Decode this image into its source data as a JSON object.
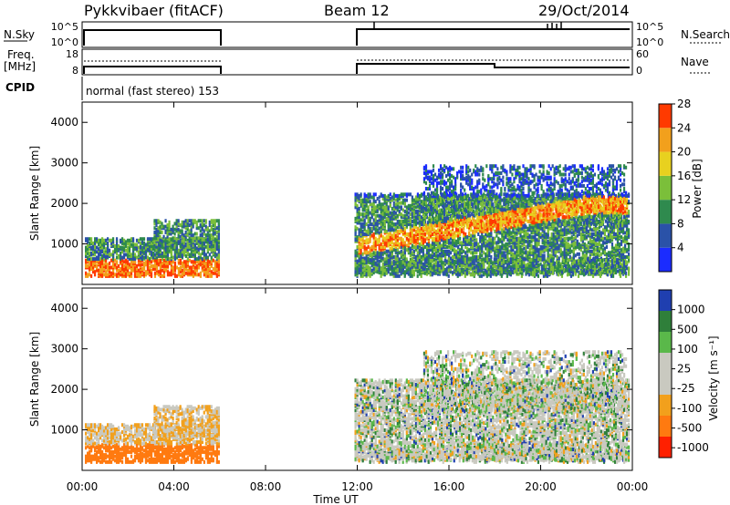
{
  "header": {
    "station": "Pykkvibaer (fitACF)",
    "beam": "Beam 12",
    "date": "29/Oct/2014"
  },
  "noise_panel": {
    "left_label": "N.Sky",
    "right_label": "N.Search",
    "left_ticks": [
      "10^5",
      "10^0"
    ],
    "right_ticks": [
      "10^5",
      "10^0"
    ]
  },
  "freq_panel": {
    "left_label_1": "Freq.",
    "left_label_2": "[MHz]",
    "right_label": "Nave",
    "left_ticks": [
      "18",
      "8"
    ],
    "right_ticks": [
      "60",
      "0"
    ]
  },
  "cpid": {
    "label": "CPID",
    "program": "normal (fast stereo) 153"
  },
  "chart_data": [
    {
      "type": "heatmap",
      "panel": "power",
      "ylabel": "Slant Range [km]",
      "y_ticks": [
        "1000",
        "2000",
        "3000",
        "4000"
      ],
      "x_ticks": [
        "00:00",
        "04:00",
        "08:00",
        "12:00",
        "16:00",
        "20:00",
        "00:00"
      ],
      "xlabel": "Time UT",
      "colorbar_label": "Power [dB]",
      "colorbar_ticks": [
        "4",
        "8",
        "12",
        "16",
        "20",
        "24",
        "28"
      ],
      "colors": [
        "#1b2cff",
        "#2a52a8",
        "#2f8a4e",
        "#7bbf3a",
        "#e8d11f",
        "#f2a01c",
        "#ff3a00"
      ]
    },
    {
      "type": "heatmap",
      "panel": "velocity",
      "ylabel": "Slant Range [km]",
      "y_ticks": [
        "1000",
        "2000",
        "3000",
        "4000"
      ],
      "x_ticks": [
        "00:00",
        "04:00",
        "08:00",
        "12:00",
        "16:00",
        "20:00",
        "00:00"
      ],
      "xlabel": "Time UT",
      "colorbar_label": "Velocity [m s⁻¹]",
      "colorbar_ticks": [
        "1000",
        "500",
        "100",
        "25",
        "-25",
        "-100",
        "-500",
        "-1000"
      ],
      "colors": [
        "#1f3fb0",
        "#2f7f3a",
        "#5ab84a",
        "#c9c9c0",
        "#c9c9c0",
        "#f2a01c",
        "#ff7a10",
        "#ff2000"
      ]
    }
  ]
}
